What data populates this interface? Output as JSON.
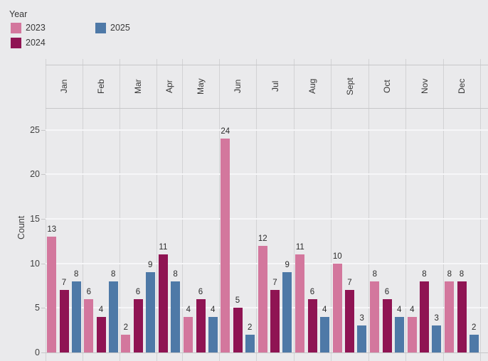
{
  "legend": {
    "title": "Year",
    "items": [
      {
        "label": "2023",
        "color": "#d3779d"
      },
      {
        "label": "2024",
        "color": "#8f1453"
      },
      {
        "label": "2025",
        "color": "#4e79a7"
      }
    ]
  },
  "axis": {
    "ylabel": "Count"
  },
  "chart_data": {
    "type": "bar",
    "title": "",
    "xlabel": "",
    "ylabel": "Count",
    "categories": [
      "Jan",
      "Feb",
      "Mar",
      "Apr",
      "May",
      "Jun",
      "Jul",
      "Aug",
      "Sept",
      "Oct",
      "Nov",
      "Dec"
    ],
    "series": [
      {
        "name": "2023",
        "color": "#d3779d",
        "values": [
          13,
          6,
          2,
          null,
          4,
          24,
          12,
          11,
          10,
          8,
          4,
          8
        ]
      },
      {
        "name": "2024",
        "color": "#8f1453",
        "values": [
          7,
          4,
          6,
          11,
          6,
          5,
          7,
          6,
          7,
          6,
          8,
          8
        ]
      },
      {
        "name": "2025",
        "color": "#4e79a7",
        "values": [
          8,
          8,
          9,
          8,
          4,
          2,
          9,
          4,
          3,
          4,
          3,
          2
        ]
      }
    ],
    "ylim": [
      0,
      25
    ],
    "yticks": [
      0,
      5,
      10,
      15,
      20,
      25
    ],
    "grid": true,
    "bar_labels": true,
    "legend_position": "top-left"
  }
}
